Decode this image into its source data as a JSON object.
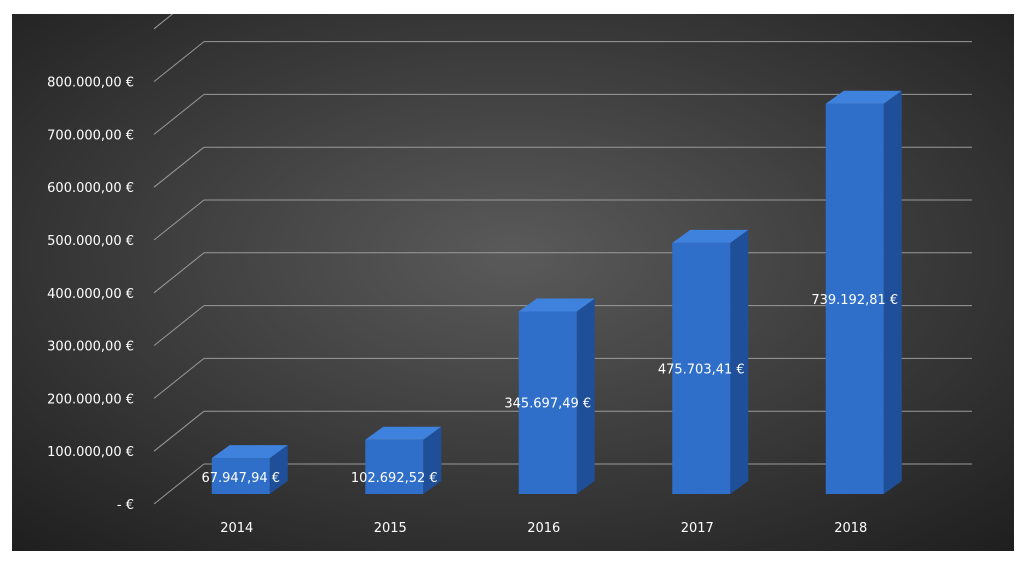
{
  "chart_data": {
    "type": "bar",
    "categories": [
      "2014",
      "2015",
      "2016",
      "2017",
      "2018"
    ],
    "values": [
      67947.94,
      102692.52,
      345697.49,
      475703.41,
      739192.81
    ],
    "value_labels": [
      "67.947,94 €",
      "102.692,52 €",
      "345.697,49 €",
      "475.703,41 €",
      "739.192,81 €"
    ],
    "y_tick_values": [
      0,
      100000,
      200000,
      300000,
      400000,
      500000,
      600000,
      700000,
      800000
    ],
    "y_tick_labels": [
      "-  €",
      "100.000,00 €",
      "200.000,00 €",
      "300.000,00 €",
      "400.000,00 €",
      "500.000,00 €",
      "600.000,00 €",
      "700.000,00 €",
      "800.000,00 €"
    ],
    "ylim": [
      0,
      900000
    ],
    "grid": true,
    "style": "3d-column",
    "colors": {
      "background_center": "#5a5a5a",
      "background_edge": "#1e1e1e",
      "bar_front": "#2f6fc9",
      "bar_side": "#1f4f99",
      "bar_top": "#3f82dd",
      "grid": "#9a9a9a",
      "text": "#ffffff"
    }
  }
}
